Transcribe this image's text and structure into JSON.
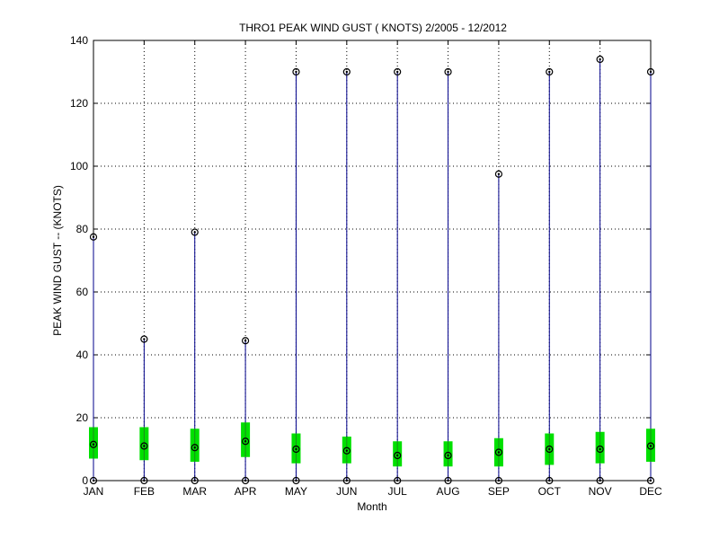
{
  "chart_data": {
    "type": "box",
    "title": "THRO1  PEAK WIND GUST ( KNOTS) 2/2005 - 12/2012",
    "xlabel": "Month",
    "ylabel": "PEAK WIND GUST -- (KNOTS)",
    "ylim": [
      0,
      140
    ],
    "yticks": [
      0,
      20,
      40,
      60,
      80,
      100,
      120,
      140
    ],
    "grid": true,
    "categories": [
      "JAN",
      "FEB",
      "MAR",
      "APR",
      "MAY",
      "JUN",
      "JUL",
      "AUG",
      "SEP",
      "OCT",
      "NOV",
      "DEC"
    ],
    "min": [
      0,
      0,
      0,
      0,
      0,
      0,
      0,
      0,
      0,
      0,
      0,
      0
    ],
    "q1": [
      7,
      6.5,
      6,
      7.5,
      5.5,
      5.5,
      4.5,
      4.5,
      4.5,
      5,
      5.5,
      6
    ],
    "median": [
      11.5,
      11,
      10.5,
      12.5,
      10,
      9.5,
      8,
      8,
      9,
      10,
      10,
      11
    ],
    "q3": [
      17,
      17,
      16.5,
      18.5,
      15,
      14,
      12.5,
      12.5,
      13.5,
      15,
      15.5,
      16.5
    ],
    "max": [
      77.5,
      45,
      79,
      44.5,
      130,
      130,
      130,
      130,
      97.5,
      130,
      134,
      130
    ],
    "colors": {
      "whisker": "#00008b",
      "box": "#00e000",
      "marker": "#000000",
      "grid": "#000000"
    }
  }
}
